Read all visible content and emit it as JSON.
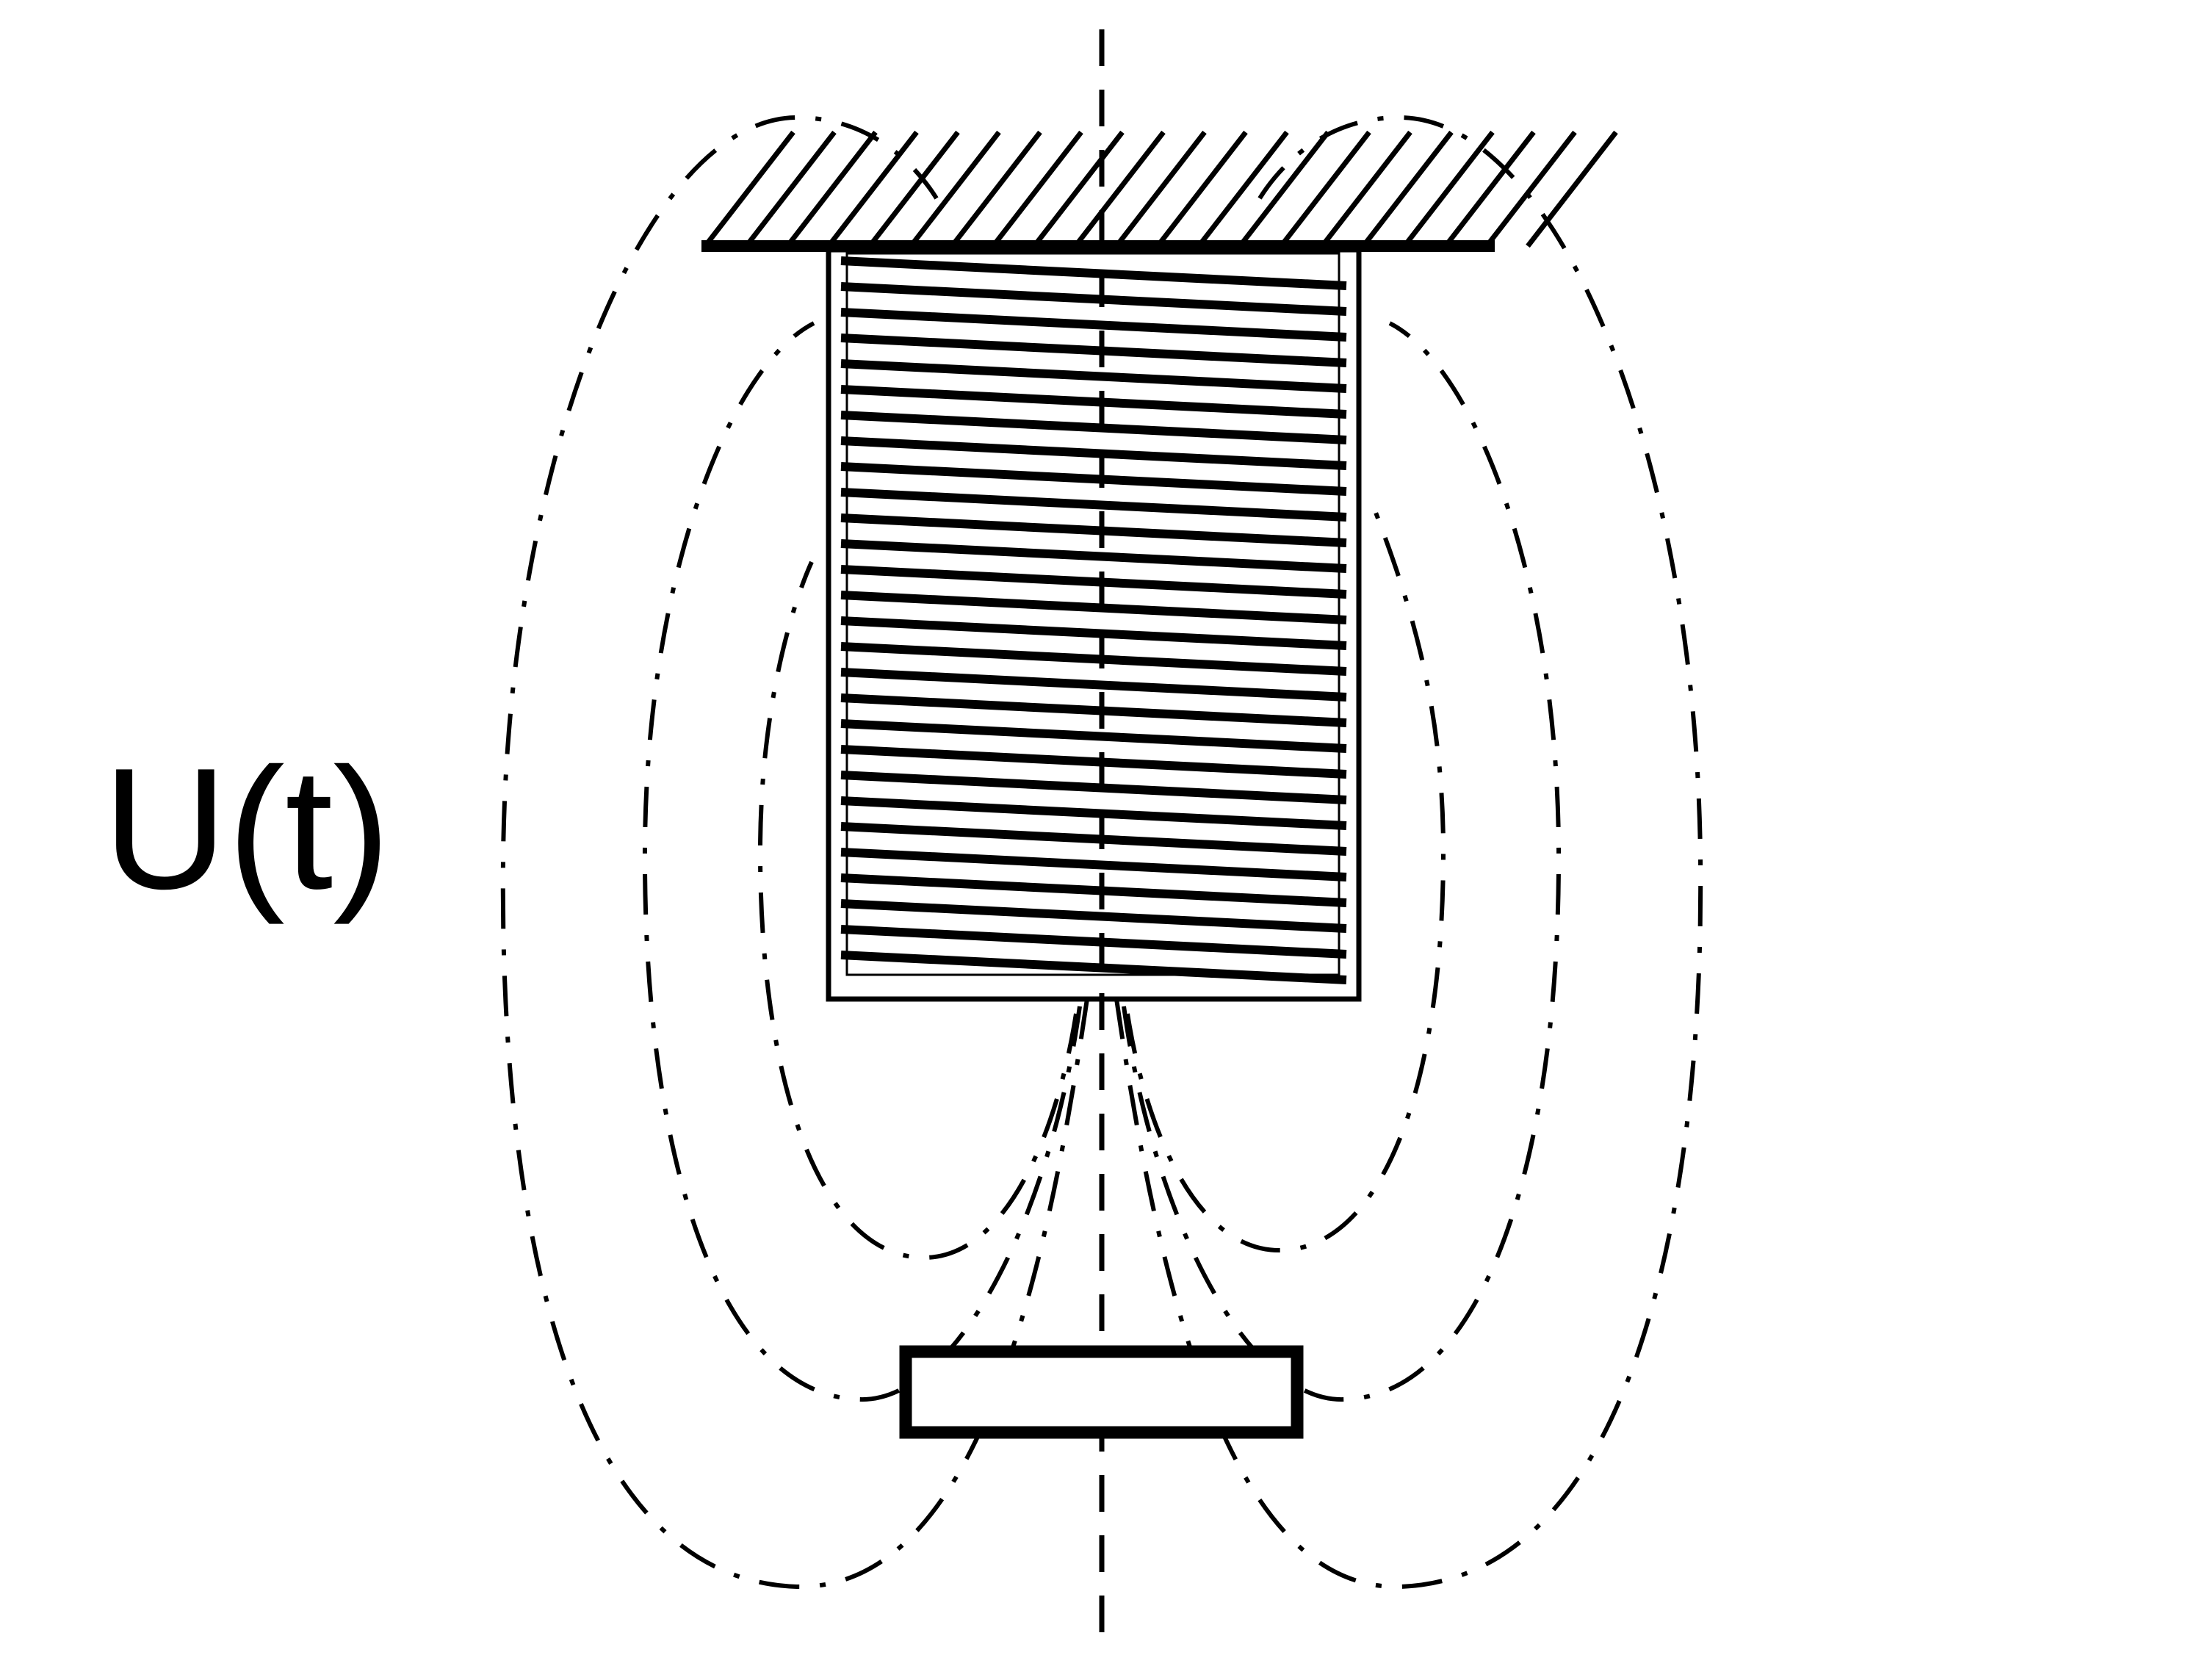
{
  "labels": {
    "voltage": "U(t)"
  },
  "colors": {
    "stroke": "#000000",
    "background": "#ffffff"
  }
}
